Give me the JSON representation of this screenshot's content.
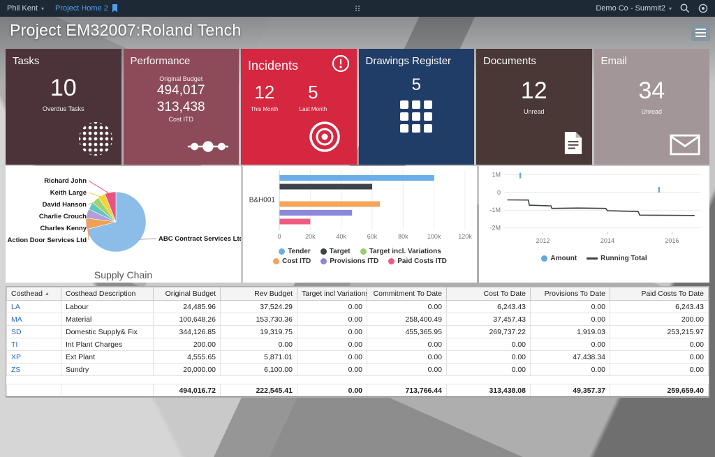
{
  "topbar": {
    "user": "Phil Kent",
    "nav_item": "Project Home 2",
    "company": "Demo Co - Summit2"
  },
  "header": {
    "title": "Project EM32007:Roland Tench"
  },
  "tiles": {
    "tasks": {
      "title": "Tasks",
      "value": "10",
      "label": "Overdue Tasks",
      "bg": "#4b3339"
    },
    "performance": {
      "title": "Performance",
      "top_label": "Original Budget",
      "value1": "494,017",
      "value2": "313,438",
      "bottom_label": "Cost ITD",
      "bg": "#8d4b59"
    },
    "incidents": {
      "title": "Incidents",
      "value1": "12",
      "label1": "This Month",
      "value2": "5",
      "label2": "Last Month",
      "bg": "#d52740"
    },
    "drawings": {
      "title": "Drawings Register",
      "value": "5",
      "bg": "#1f3d66"
    },
    "documents": {
      "title": "Documents",
      "value": "12",
      "label": "Unread",
      "bg": "#493835"
    },
    "email": {
      "title": "Email",
      "value": "34",
      "label": "Unread",
      "bg": "#a39698"
    }
  },
  "chart_data": [
    {
      "type": "pie",
      "title": "Supply Chain",
      "slices": [
        {
          "label": "ABC Contract Services Ltd",
          "value": 71,
          "color": "#8cbde9",
          "label_side": "right"
        },
        {
          "label": "Action Door Services Ltd",
          "value": 6,
          "color": "#f0a04e",
          "label_side": "left"
        },
        {
          "label": "Charles Kenny",
          "value": 5,
          "color": "#b49ddb",
          "label_side": "left"
        },
        {
          "label": "Charlie Crouch",
          "value": 4,
          "color": "#63c6bb",
          "label_side": "left"
        },
        {
          "label": "David Hanson",
          "value": 4,
          "color": "#a2d06a",
          "label_side": "left"
        },
        {
          "label": "Keith Large",
          "value": 4,
          "color": "#f2d338",
          "label_side": "left"
        },
        {
          "label": "Richard John",
          "value": 6,
          "color": "#e85480",
          "label_side": "left"
        }
      ]
    },
    {
      "type": "bar",
      "orientation": "horizontal",
      "category": "B&H001",
      "xmax": 120000,
      "xticks": [
        {
          "label": "0",
          "value": 0
        },
        {
          "label": "20k",
          "value": 20000
        },
        {
          "label": "40k",
          "value": 40000
        },
        {
          "label": "60k",
          "value": 60000
        },
        {
          "label": "80k",
          "value": 80000
        },
        {
          "label": "100k",
          "value": 100000
        },
        {
          "label": "120k",
          "value": 120000
        }
      ],
      "series": [
        {
          "name": "Tender",
          "value": 100000,
          "color": "#6aaee8"
        },
        {
          "name": "Target",
          "value": 60000,
          "color": "#3d434b"
        },
        {
          "name": "Target incl. Variations",
          "value": 0,
          "color": "#97cf6d"
        },
        {
          "name": "Cost ITD",
          "value": 65000,
          "color": "#f5a45c"
        },
        {
          "name": "Provisions ITD",
          "value": 47000,
          "color": "#8c88d8"
        },
        {
          "name": "Paid Costs ITD",
          "value": 20000,
          "color": "#ee5b84"
        }
      ]
    },
    {
      "type": "line",
      "xlim": [
        2010.8,
        2016.9
      ],
      "ylim_millions": [
        -2.25,
        1.25
      ],
      "yticks": [
        {
          "label": "1M",
          "value": 1
        },
        {
          "label": "0",
          "value": 0
        },
        {
          "label": "-1M",
          "value": -1
        },
        {
          "label": "-2M",
          "value": -2
        }
      ],
      "xticks": [
        {
          "label": "2012",
          "value": 2012
        },
        {
          "label": "2014",
          "value": 2014
        },
        {
          "label": "2016",
          "value": 2016
        }
      ],
      "amount": {
        "name": "Amount",
        "color": "#64a8e0",
        "points": [
          [
            2011.3,
            0.95
          ],
          [
            2015.6,
            0.15
          ]
        ]
      },
      "running_total": {
        "name": "Running Total",
        "color": "#3b4046",
        "points": [
          [
            2010.9,
            -0.42
          ],
          [
            2011.55,
            -0.43
          ],
          [
            2011.58,
            -0.72
          ],
          [
            2011.9,
            -0.74
          ],
          [
            2012.25,
            -0.76
          ],
          [
            2012.28,
            -0.9
          ],
          [
            2013.1,
            -0.88
          ],
          [
            2013.95,
            -0.9
          ],
          [
            2014.0,
            -1.03
          ],
          [
            2014.55,
            -1.06
          ],
          [
            2014.95,
            -1.08
          ],
          [
            2015.0,
            -1.28
          ],
          [
            2016.7,
            -1.3
          ]
        ]
      }
    }
  ],
  "table": {
    "columns": [
      {
        "label": "Costhead",
        "sorted": true
      },
      {
        "label": "Costhead Description"
      },
      {
        "label": "Original Budget"
      },
      {
        "label": "Rev Budget"
      },
      {
        "label": "Target incl Variations"
      },
      {
        "label": "Commitment To Date"
      },
      {
        "label": "Cost To Date"
      },
      {
        "label": "Provisions To Date"
      },
      {
        "label": "Paid Costs To Date"
      }
    ],
    "rows": [
      [
        "LA",
        "Labour",
        "24,485.96",
        "37,524.29",
        "0.00",
        "0.00",
        "6,243.43",
        "0.00",
        "6,243.43"
      ],
      [
        "MA",
        "Material",
        "100,648.26",
        "153,730.36",
        "0.00",
        "258,400.49",
        "37,457.43",
        "0.00",
        "200.00"
      ],
      [
        "SD",
        "Domestic Supply& Fix",
        "344,126.85",
        "19,319.75",
        "0.00",
        "455,365.95",
        "269,737.22",
        "1,919.03",
        "253,215.97"
      ],
      [
        "TI",
        "Int Plant Charges",
        "200.00",
        "0.00",
        "0.00",
        "0.00",
        "0.00",
        "0.00",
        "0.00"
      ],
      [
        "XP",
        "Ext Plant",
        "4,555.65",
        "5,871.01",
        "0.00",
        "0.00",
        "0.00",
        "47,438.34",
        "0.00"
      ],
      [
        "ZS",
        "Sundry",
        "20,000.00",
        "6,100.00",
        "0.00",
        "0.00",
        "0.00",
        "0.00",
        "0.00"
      ]
    ],
    "totals": [
      "",
      "",
      "494,016.72",
      "222,545.41",
      "0.00",
      "713,766.44",
      "313,438.08",
      "49,357.37",
      "259,659.40"
    ]
  }
}
